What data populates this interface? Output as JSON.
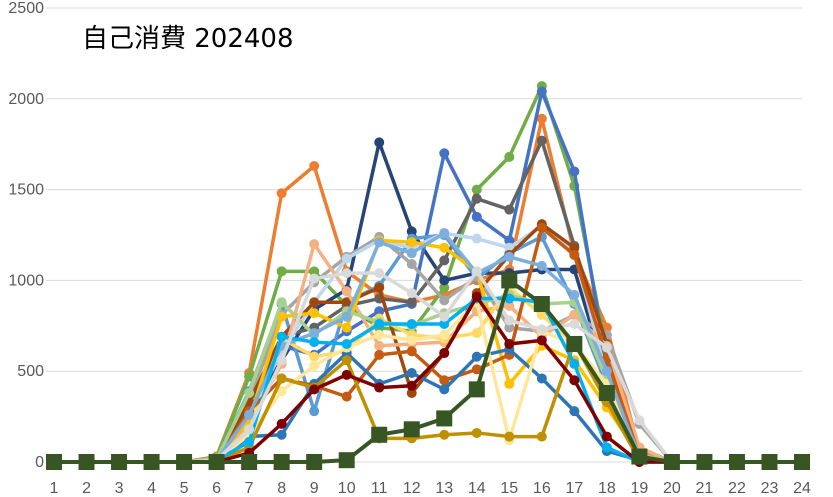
{
  "chart_data": {
    "type": "line",
    "title": "自己消費 202408",
    "xlabel": "",
    "ylabel": "",
    "x": [
      1,
      2,
      3,
      4,
      5,
      6,
      7,
      8,
      9,
      10,
      11,
      12,
      13,
      14,
      15,
      16,
      17,
      18,
      19,
      20,
      21,
      22,
      23,
      24
    ],
    "xlim": [
      1,
      24
    ],
    "ylim": [
      0,
      2500
    ],
    "yticks": [
      0,
      500,
      1000,
      1500,
      2000,
      2500
    ],
    "grid": true,
    "legend": "none",
    "series": [
      {
        "color": "#ed7d31",
        "values": [
          0,
          0,
          0,
          0,
          0,
          30,
          490,
          1480,
          1630,
          1050,
          920,
          880,
          920,
          1000,
          1060,
          1890,
          1150,
          740,
          60,
          0,
          0,
          0,
          0,
          0
        ]
      },
      {
        "color": "#70ad47",
        "values": [
          0,
          0,
          0,
          0,
          0,
          25,
          470,
          1050,
          1050,
          860,
          740,
          720,
          960,
          1500,
          1680,
          2070,
          1520,
          600,
          80,
          0,
          0,
          0,
          0,
          0
        ]
      },
      {
        "color": "#264478",
        "values": [
          0,
          0,
          0,
          0,
          0,
          15,
          270,
          560,
          840,
          950,
          1760,
          1270,
          1000,
          1040,
          1040,
          1060,
          1060,
          460,
          20,
          0,
          0,
          0,
          0,
          0
        ]
      },
      {
        "color": "#4472c4",
        "values": [
          0,
          0,
          0,
          0,
          0,
          10,
          330,
          640,
          590,
          720,
          830,
          870,
          1700,
          1350,
          1220,
          2040,
          1600,
          520,
          30,
          0,
          0,
          0,
          0,
          0
        ]
      },
      {
        "color": "#636363",
        "values": [
          0,
          0,
          0,
          0,
          0,
          10,
          300,
          690,
          740,
          860,
          900,
          880,
          1110,
          1450,
          1390,
          1770,
          1190,
          480,
          30,
          0,
          0,
          0,
          0,
          0
        ]
      },
      {
        "color": "#5b9bd5",
        "values": [
          0,
          0,
          0,
          0,
          0,
          15,
          390,
          870,
          280,
          880,
          970,
          1230,
          1250,
          1010,
          1150,
          1240,
          870,
          420,
          20,
          0,
          0,
          0,
          0,
          0
        ]
      },
      {
        "color": "#a5a5a5",
        "values": [
          0,
          0,
          0,
          0,
          0,
          20,
          340,
          810,
          990,
          1130,
          1240,
          1090,
          890,
          1020,
          740,
          720,
          810,
          700,
          210,
          0,
          0,
          0,
          0,
          0
        ]
      },
      {
        "color": "#bdd7ee",
        "values": [
          0,
          0,
          0,
          0,
          0,
          15,
          260,
          610,
          880,
          1120,
          1220,
          1180,
          1260,
          1230,
          1180,
          1300,
          1160,
          470,
          20,
          0,
          0,
          0,
          0,
          0
        ]
      },
      {
        "color": "#9e480e",
        "values": [
          0,
          0,
          0,
          0,
          0,
          10,
          330,
          690,
          880,
          880,
          960,
          380,
          600,
          930,
          1140,
          1310,
          1180,
          650,
          40,
          0,
          0,
          0,
          0,
          0
        ]
      },
      {
        "color": "#f4b183",
        "values": [
          0,
          0,
          0,
          0,
          0,
          20,
          210,
          540,
          1200,
          940,
          640,
          650,
          660,
          830,
          860,
          690,
          810,
          640,
          80,
          0,
          0,
          0,
          0,
          0
        ]
      },
      {
        "color": "#ffc000",
        "values": [
          0,
          0,
          0,
          0,
          0,
          15,
          230,
          800,
          820,
          740,
          1220,
          1210,
          1180,
          1050,
          430,
          640,
          560,
          300,
          40,
          0,
          0,
          0,
          0,
          0
        ]
      },
      {
        "color": "#ffd966",
        "values": [
          0,
          0,
          0,
          0,
          0,
          10,
          170,
          680,
          580,
          610,
          790,
          700,
          680,
          710,
          960,
          810,
          650,
          330,
          30,
          0,
          0,
          0,
          0,
          0
        ]
      },
      {
        "color": "#c55a11",
        "values": [
          0,
          0,
          0,
          0,
          0,
          10,
          280,
          460,
          420,
          360,
          590,
          610,
          450,
          510,
          590,
          1290,
          1140,
          570,
          30,
          0,
          0,
          0,
          0,
          0
        ]
      },
      {
        "color": "#2e75b6",
        "values": [
          0,
          0,
          0,
          0,
          0,
          10,
          140,
          150,
          430,
          600,
          430,
          490,
          400,
          580,
          620,
          460,
          280,
          60,
          10,
          0,
          0,
          0,
          0,
          0
        ]
      },
      {
        "color": "#a9d18e",
        "values": [
          0,
          0,
          0,
          0,
          0,
          15,
          380,
          880,
          700,
          830,
          770,
          750,
          820,
          870,
          920,
          870,
          880,
          450,
          40,
          0,
          0,
          0,
          0,
          0
        ]
      },
      {
        "color": "#ffe699",
        "values": [
          0,
          0,
          0,
          0,
          0,
          10,
          150,
          390,
          530,
          630,
          700,
          670,
          700,
          880,
          120,
          720,
          650,
          430,
          30,
          0,
          0,
          0,
          0,
          0
        ]
      },
      {
        "color": "#bf9000",
        "values": [
          0,
          0,
          0,
          0,
          0,
          5,
          80,
          460,
          410,
          560,
          130,
          130,
          150,
          160,
          140,
          140,
          660,
          330,
          10,
          0,
          0,
          0,
          0,
          0
        ]
      },
      {
        "color": "#7cafdd",
        "values": [
          0,
          0,
          0,
          0,
          0,
          10,
          260,
          640,
          710,
          800,
          1210,
          1150,
          1260,
          1040,
          1130,
          1080,
          920,
          500,
          20,
          0,
          0,
          0,
          0,
          0
        ]
      },
      {
        "color": "#00b0f0",
        "values": [
          0,
          0,
          0,
          0,
          0,
          10,
          110,
          690,
          660,
          650,
          760,
          760,
          760,
          900,
          900,
          880,
          540,
          80,
          0,
          0,
          0,
          0,
          0,
          0
        ]
      },
      {
        "color": "#d9d9d9",
        "values": [
          0,
          0,
          0,
          0,
          0,
          10,
          180,
          560,
          1010,
          1040,
          1040,
          930,
          800,
          1050,
          780,
          730,
          760,
          630,
          230,
          0,
          0,
          0,
          0,
          0
        ]
      },
      {
        "color": "#7f0000",
        "values": [
          0,
          0,
          0,
          0,
          0,
          0,
          50,
          210,
          400,
          480,
          410,
          420,
          600,
          910,
          650,
          670,
          450,
          140,
          0,
          0,
          0,
          0,
          0,
          0
        ]
      },
      {
        "color": "#375623",
        "values": [
          0,
          0,
          0,
          0,
          0,
          0,
          0,
          0,
          0,
          10,
          150,
          180,
          240,
          400,
          1000,
          870,
          650,
          380,
          30,
          0,
          0,
          0,
          0,
          0
        ],
        "marker": "square"
      }
    ]
  }
}
